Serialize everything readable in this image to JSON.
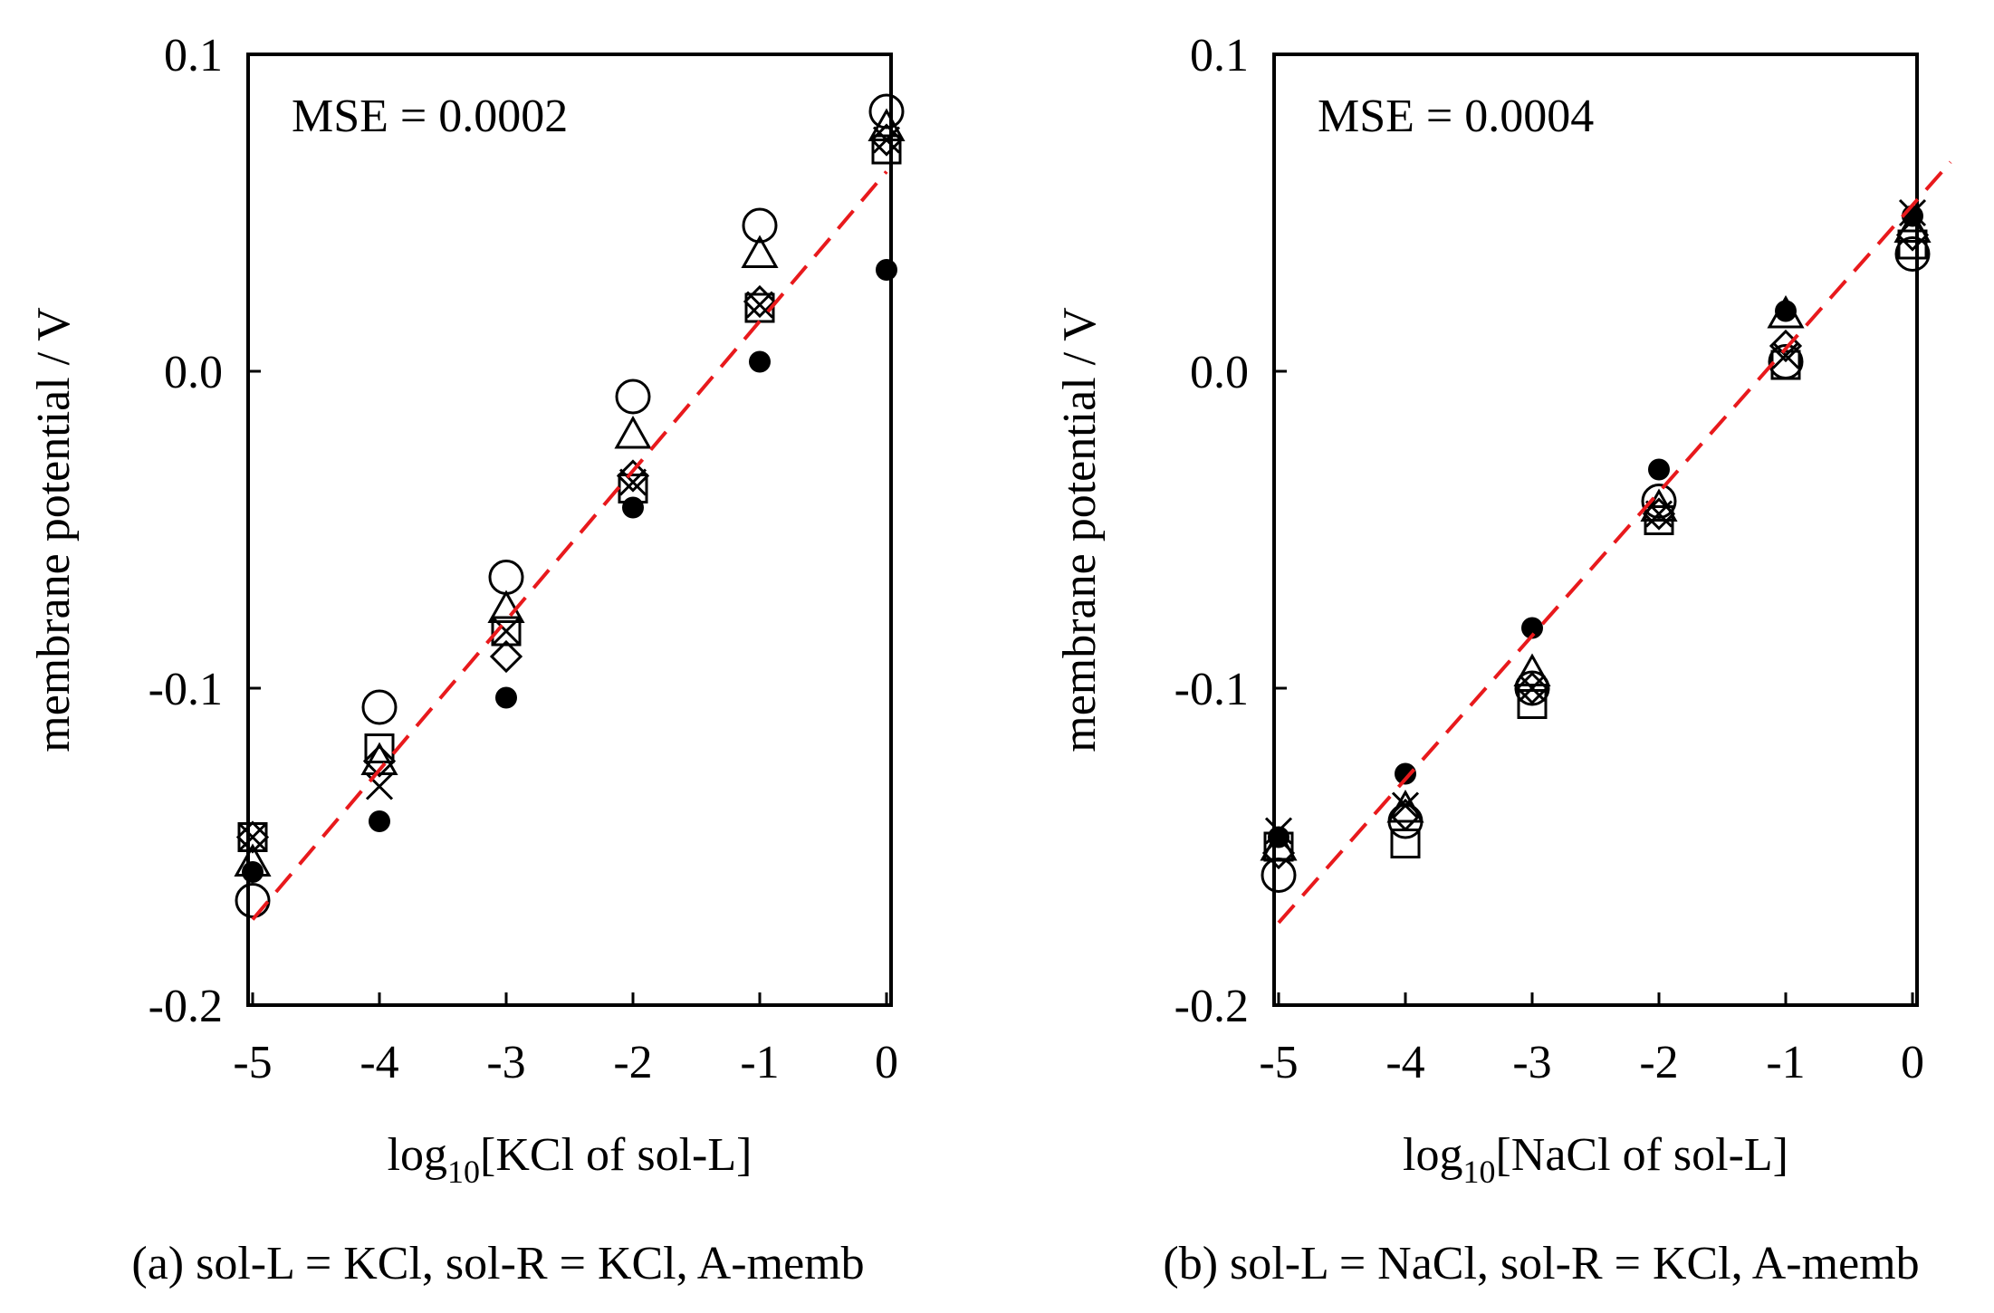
{
  "chart_data": [
    {
      "type": "scatter",
      "panel_caption": "(a) sol-L = KCl, sol-R = KCl, A-memb",
      "annotation": "MSE = 0.0002",
      "xlabel_prefix": "log",
      "xlabel_subscript": "10",
      "xlabel_suffix": "[KCl of sol-L]",
      "ylabel": "membrane potential / V",
      "xlim": [
        -5,
        0
      ],
      "ylim": [
        -0.2,
        0.1
      ],
      "xticks": [
        -5,
        -4,
        -3,
        -2,
        -1,
        0
      ],
      "xtick_labels": [
        "-5",
        "-4",
        "-3",
        "-2",
        "-1",
        "0"
      ],
      "yticks": [
        -0.2,
        -0.1,
        0.0,
        0.1
      ],
      "ytick_labels": [
        "-0.2",
        "-0.1",
        "0.0",
        "0.1"
      ],
      "x": [
        -5,
        -4,
        -3,
        -2,
        -1,
        0
      ],
      "series": [
        {
          "name": "open circle",
          "marker": "circle-open",
          "values": [
            -0.167,
            -0.106,
            -0.065,
            -0.008,
            0.046,
            0.082
          ]
        },
        {
          "name": "triangle",
          "marker": "triangle-open",
          "values": [
            -0.155,
            -0.123,
            -0.075,
            -0.02,
            0.037,
            0.077
          ]
        },
        {
          "name": "square",
          "marker": "square-open",
          "values": [
            -0.147,
            -0.119,
            -0.082,
            -0.037,
            0.02,
            0.07
          ]
        },
        {
          "name": "diamond",
          "marker": "diamond-open",
          "values": [
            -0.147,
            -0.123,
            -0.09,
            -0.033,
            0.022,
            0.073
          ]
        },
        {
          "name": "cross",
          "marker": "x",
          "values": [
            -0.147,
            -0.131,
            -0.082,
            -0.035,
            0.021,
            0.073
          ]
        },
        {
          "name": "filled circle",
          "marker": "circle-filled",
          "values": [
            -0.158,
            -0.142,
            -0.103,
            -0.043,
            0.003,
            0.032
          ]
        }
      ],
      "fit_line": {
        "style": "dashed",
        "color": "#e8191c",
        "x": [
          -5.0,
          0.0
        ],
        "y": [
          -0.173,
          0.063
        ]
      }
    },
    {
      "type": "scatter",
      "panel_caption": "(b) sol-L = NaCl, sol-R = KCl, A-memb",
      "annotation": "MSE = 0.0004",
      "xlabel_prefix": "log",
      "xlabel_subscript": "10",
      "xlabel_suffix": "[NaCl of sol-L]",
      "ylabel": "membrane potential / V",
      "xlim": [
        -5,
        0
      ],
      "ylim": [
        -0.2,
        0.1
      ],
      "xticks": [
        -5,
        -4,
        -3,
        -2,
        -1,
        0
      ],
      "xtick_labels": [
        "-5",
        "-4",
        "-3",
        "-2",
        "-1",
        "0"
      ],
      "yticks": [
        -0.2,
        -0.1,
        0.0,
        0.1
      ],
      "ytick_labels": [
        "-0.2",
        "-0.1",
        "0.0",
        "0.1"
      ],
      "x": [
        -5,
        -4,
        -3,
        -2,
        -1,
        0
      ],
      "series": [
        {
          "name": "open circle",
          "marker": "circle-open",
          "values": [
            -0.159,
            -0.142,
            -0.1,
            -0.041,
            0.003,
            0.037
          ]
        },
        {
          "name": "triangle",
          "marker": "triangle-open",
          "values": [
            -0.15,
            -0.138,
            -0.095,
            -0.043,
            0.018,
            0.045
          ]
        },
        {
          "name": "square",
          "marker": "square-open",
          "values": [
            -0.15,
            -0.149,
            -0.105,
            -0.047,
            0.002,
            0.04
          ]
        },
        {
          "name": "diamond",
          "marker": "diamond-open",
          "values": [
            -0.152,
            -0.14,
            -0.1,
            -0.045,
            0.008,
            0.043
          ]
        },
        {
          "name": "cross",
          "marker": "x",
          "values": [
            -0.145,
            -0.137,
            -0.1,
            -0.045,
            0.005,
            0.05
          ]
        },
        {
          "name": "filled circle",
          "marker": "circle-filled",
          "values": [
            -0.147,
            -0.127,
            -0.081,
            -0.031,
            0.019,
            0.049
          ]
        }
      ],
      "fit_line": {
        "style": "dashed",
        "color": "#e8191c",
        "x": [
          -5.0,
          0.3
        ],
        "y": [
          -0.174,
          0.066
        ]
      }
    }
  ]
}
